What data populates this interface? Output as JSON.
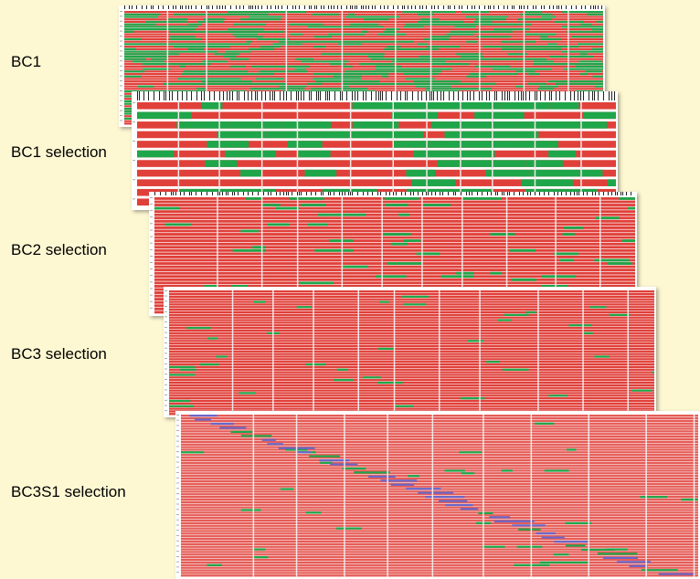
{
  "colors": {
    "background": "#fdf8d2",
    "introgression": "#e0403a",
    "donor": "#1fa64a",
    "marker_blue": "#6a66c8"
  },
  "panels": [
    {
      "id": "bc1",
      "label": "BC1"
    },
    {
      "id": "bc1sel",
      "label": "BC1 selection"
    },
    {
      "id": "bc2sel",
      "label": "BC2 selection"
    },
    {
      "id": "bc3sel",
      "label": "BC3 selection"
    },
    {
      "id": "bc3s1sel",
      "label": "BC3S1 selection"
    }
  ]
}
